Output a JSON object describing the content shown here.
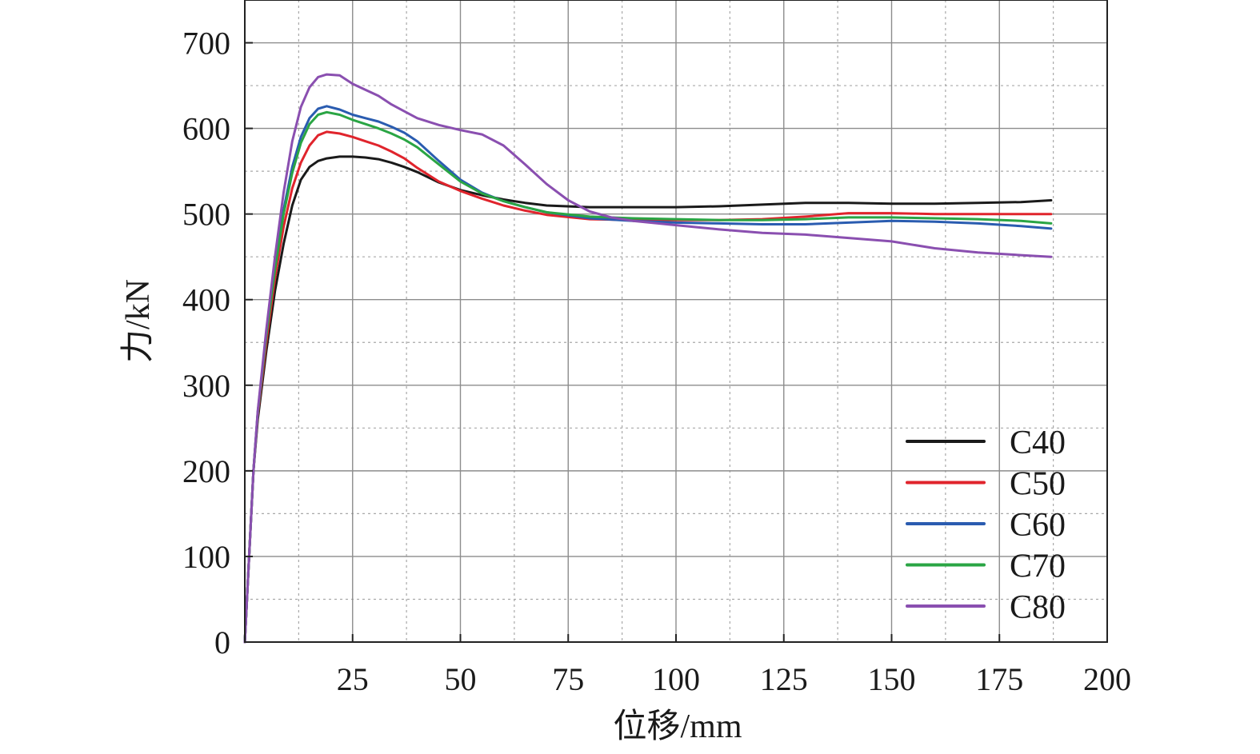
{
  "chart_data": {
    "type": "line",
    "title": "",
    "xlabel": "位移/mm",
    "ylabel": "力/kN",
    "xlim": [
      0,
      200
    ],
    "ylim": [
      0,
      750
    ],
    "xticks": [
      25,
      50,
      75,
      100,
      125,
      150,
      175,
      200
    ],
    "yticks": [
      0,
      100,
      200,
      300,
      400,
      500,
      600,
      700
    ],
    "xticklabels": [
      "25",
      "50",
      "75",
      "100",
      "125",
      "150",
      "175",
      "200"
    ],
    "yticklabels": [
      "0",
      "100",
      "200",
      "300",
      "400",
      "500",
      "600",
      "700"
    ],
    "grid": true,
    "legend_position": "bottom-right",
    "series": [
      {
        "name": "C40",
        "color": "#1a1a1a",
        "x": [
          0,
          1,
          2,
          3,
          5,
          7,
          9,
          11,
          13,
          15,
          17,
          19,
          22,
          25,
          28,
          31,
          34,
          37,
          40,
          45,
          50,
          55,
          60,
          65,
          70,
          80,
          90,
          100,
          110,
          120,
          130,
          140,
          150,
          160,
          170,
          180,
          187
        ],
        "y": [
          0,
          100,
          200,
          260,
          340,
          410,
          465,
          510,
          540,
          555,
          562,
          565,
          567,
          567,
          566,
          564,
          560,
          555,
          549,
          537,
          528,
          522,
          517,
          513,
          510,
          508,
          508,
          508,
          509,
          511,
          513,
          513,
          512,
          512,
          513,
          514,
          516
        ]
      },
      {
        "name": "C50",
        "color": "#e0242c",
        "x": [
          0,
          1,
          2,
          3,
          5,
          7,
          9,
          11,
          13,
          15,
          17,
          19,
          22,
          25,
          28,
          31,
          34,
          37,
          40,
          45,
          50,
          55,
          60,
          65,
          70,
          80,
          90,
          100,
          110,
          120,
          130,
          140,
          150,
          160,
          170,
          180,
          187
        ],
        "y": [
          0,
          100,
          200,
          265,
          350,
          425,
          485,
          530,
          560,
          580,
          592,
          596,
          594,
          590,
          585,
          580,
          573,
          565,
          554,
          538,
          527,
          518,
          510,
          504,
          499,
          494,
          493,
          493,
          493,
          494,
          497,
          501,
          501,
          500,
          500,
          500,
          500
        ]
      },
      {
        "name": "C60",
        "color": "#2a5cb0",
        "x": [
          0,
          1,
          2,
          3,
          5,
          7,
          9,
          11,
          13,
          15,
          17,
          19,
          22,
          25,
          28,
          31,
          34,
          37,
          40,
          45,
          50,
          55,
          60,
          65,
          70,
          80,
          90,
          100,
          110,
          120,
          130,
          140,
          150,
          160,
          170,
          180,
          187
        ],
        "y": [
          0,
          100,
          200,
          268,
          360,
          440,
          505,
          555,
          590,
          612,
          623,
          626,
          622,
          616,
          612,
          608,
          602,
          595,
          585,
          562,
          540,
          525,
          515,
          508,
          502,
          495,
          492,
          490,
          489,
          488,
          488,
          490,
          492,
          491,
          489,
          486,
          483
        ]
      },
      {
        "name": "C70",
        "color": "#2aa544",
        "x": [
          0,
          1,
          2,
          3,
          5,
          7,
          9,
          11,
          13,
          15,
          17,
          19,
          22,
          25,
          28,
          31,
          34,
          37,
          40,
          45,
          50,
          55,
          60,
          65,
          70,
          80,
          90,
          100,
          110,
          120,
          130,
          140,
          150,
          160,
          170,
          180,
          187
        ],
        "y": [
          0,
          100,
          200,
          268,
          358,
          435,
          500,
          548,
          583,
          605,
          616,
          619,
          616,
          610,
          605,
          600,
          594,
          587,
          578,
          558,
          538,
          524,
          515,
          508,
          502,
          497,
          495,
          494,
          493,
          493,
          494,
          496,
          496,
          495,
          494,
          492,
          489
        ]
      },
      {
        "name": "C80",
        "color": "#8a4fb0",
        "x": [
          0,
          1,
          2,
          3,
          5,
          7,
          9,
          11,
          13,
          15,
          17,
          19,
          22,
          25,
          28,
          31,
          34,
          37,
          40,
          45,
          50,
          55,
          60,
          65,
          70,
          75,
          80,
          85,
          90,
          100,
          110,
          120,
          130,
          140,
          150,
          160,
          170,
          180,
          187
        ],
        "y": [
          0,
          100,
          200,
          270,
          365,
          450,
          525,
          585,
          625,
          648,
          660,
          663,
          662,
          652,
          645,
          638,
          628,
          620,
          612,
          604,
          598,
          593,
          580,
          558,
          535,
          516,
          503,
          496,
          492,
          487,
          482,
          478,
          476,
          472,
          468,
          460,
          455,
          452,
          450
        ]
      }
    ]
  }
}
